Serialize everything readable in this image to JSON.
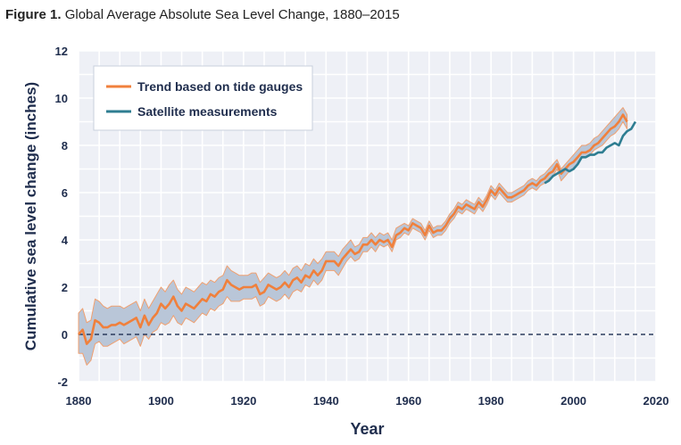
{
  "figure_label": "Figure 1.",
  "figure_title": "Global Average Absolute Sea Level Change, 1880–2015",
  "colors": {
    "tide": "#f0803c",
    "band_fill": "#b9c6d8",
    "band_edge": "#f0a070",
    "satellite": "#2e7d91",
    "plot_bg": "#eef0f6",
    "grid": "#ffffff",
    "zero_line": "#2a3a5c",
    "text": "#1f2d4d"
  },
  "chart_data": {
    "type": "line",
    "xlabel": "Year",
    "ylabel": "Cumulative sea level change (inches)",
    "xlim": [
      1880,
      2020
    ],
    "ylim": [
      -2,
      12
    ],
    "xticks": [
      "1880",
      "1900",
      "1920",
      "1940",
      "1960",
      "1980",
      "2000",
      "2020"
    ],
    "yticks": [
      "-2",
      "0",
      "2",
      "4",
      "6",
      "8",
      "10",
      "12"
    ],
    "grid": true,
    "legend_position": "top-left",
    "reference_line": {
      "y": 0,
      "style": "dashed"
    },
    "series": [
      {
        "name": "Trend based on tide gauges",
        "x": [
          1880,
          1881,
          1882,
          1883,
          1884,
          1885,
          1886,
          1887,
          1888,
          1889,
          1890,
          1891,
          1892,
          1893,
          1894,
          1895,
          1896,
          1897,
          1898,
          1899,
          1900,
          1901,
          1902,
          1903,
          1904,
          1905,
          1906,
          1907,
          1908,
          1909,
          1910,
          1911,
          1912,
          1913,
          1914,
          1915,
          1916,
          1917,
          1918,
          1919,
          1920,
          1921,
          1922,
          1923,
          1924,
          1925,
          1926,
          1927,
          1928,
          1929,
          1930,
          1931,
          1932,
          1933,
          1934,
          1935,
          1936,
          1937,
          1938,
          1939,
          1940,
          1941,
          1942,
          1943,
          1944,
          1945,
          1946,
          1947,
          1948,
          1949,
          1950,
          1951,
          1952,
          1953,
          1954,
          1955,
          1956,
          1957,
          1958,
          1959,
          1960,
          1961,
          1962,
          1963,
          1964,
          1965,
          1966,
          1967,
          1968,
          1969,
          1970,
          1971,
          1972,
          1973,
          1974,
          1975,
          1976,
          1977,
          1978,
          1979,
          1980,
          1981,
          1982,
          1983,
          1984,
          1985,
          1986,
          1987,
          1988,
          1989,
          1990,
          1991,
          1992,
          1993,
          1994,
          1995,
          1996,
          1997,
          1998,
          1999,
          2000,
          2001,
          2002,
          2003,
          2004,
          2005,
          2006,
          2007,
          2008,
          2009,
          2010,
          2011,
          2012,
          2013
        ],
        "y": [
          0.0,
          0.2,
          -0.4,
          -0.2,
          0.6,
          0.5,
          0.3,
          0.3,
          0.4,
          0.4,
          0.5,
          0.4,
          0.5,
          0.6,
          0.7,
          0.3,
          0.8,
          0.4,
          0.7,
          0.9,
          1.3,
          1.1,
          1.3,
          1.6,
          1.2,
          1.0,
          1.3,
          1.2,
          1.1,
          1.3,
          1.5,
          1.4,
          1.7,
          1.6,
          1.8,
          1.9,
          2.3,
          2.1,
          2.0,
          1.9,
          2.0,
          2.0,
          2.0,
          2.1,
          1.7,
          1.8,
          2.1,
          2.0,
          1.9,
          2.0,
          2.2,
          2.0,
          2.3,
          2.4,
          2.2,
          2.5,
          2.4,
          2.7,
          2.5,
          2.7,
          3.1,
          3.1,
          3.1,
          2.9,
          3.2,
          3.4,
          3.6,
          3.4,
          3.5,
          3.8,
          3.8,
          4.0,
          3.8,
          4.0,
          3.9,
          4.0,
          3.7,
          4.2,
          4.3,
          4.5,
          4.4,
          4.7,
          4.6,
          4.5,
          4.2,
          4.6,
          4.3,
          4.4,
          4.4,
          4.6,
          4.9,
          5.1,
          5.4,
          5.3,
          5.5,
          5.4,
          5.3,
          5.6,
          5.4,
          5.7,
          6.1,
          5.9,
          6.2,
          6.0,
          5.8,
          5.8,
          5.9,
          6.0,
          6.1,
          6.3,
          6.4,
          6.3,
          6.5,
          6.6,
          6.8,
          6.9,
          7.2,
          6.8,
          7.0,
          7.2,
          7.3,
          7.5,
          7.7,
          7.7,
          7.8,
          8.0,
          8.1,
          8.3,
          8.5,
          8.7,
          8.8,
          9.0,
          9.3,
          9.0
        ],
        "lower": [
          -0.8,
          -0.8,
          -1.3,
          -1.1,
          -0.4,
          -0.3,
          -0.5,
          -0.5,
          -0.4,
          -0.3,
          -0.2,
          -0.4,
          -0.3,
          -0.2,
          -0.1,
          -0.5,
          0.0,
          -0.2,
          0.1,
          0.2,
          0.5,
          0.4,
          0.5,
          0.8,
          0.5,
          0.4,
          0.7,
          0.6,
          0.5,
          0.7,
          0.9,
          0.8,
          1.1,
          1.0,
          1.2,
          1.3,
          1.6,
          1.4,
          1.4,
          1.4,
          1.5,
          1.5,
          1.5,
          1.6,
          1.2,
          1.3,
          1.6,
          1.5,
          1.4,
          1.5,
          1.7,
          1.5,
          1.8,
          1.9,
          1.8,
          2.1,
          2.0,
          2.3,
          2.1,
          2.3,
          2.7,
          2.7,
          2.7,
          2.5,
          2.8,
          3.1,
          3.3,
          3.1,
          3.2,
          3.5,
          3.5,
          3.7,
          3.5,
          3.8,
          3.7,
          3.8,
          3.5,
          4.0,
          4.1,
          4.3,
          4.2,
          4.5,
          4.4,
          4.3,
          4.0,
          4.4,
          4.1,
          4.2,
          4.2,
          4.4,
          4.7,
          4.9,
          5.2,
          5.1,
          5.3,
          5.2,
          5.1,
          5.4,
          5.2,
          5.5,
          5.9,
          5.7,
          6.0,
          5.8,
          5.6,
          5.6,
          5.7,
          5.8,
          5.9,
          6.1,
          6.2,
          6.1,
          6.3,
          6.4,
          6.6,
          6.7,
          7.0,
          6.5,
          6.7,
          6.9,
          7.0,
          7.2,
          7.5,
          7.5,
          7.6,
          7.8,
          7.9,
          8.0,
          8.2,
          8.4,
          8.5,
          8.7,
          9.0,
          8.7
        ],
        "upper": [
          0.9,
          1.1,
          0.5,
          0.6,
          1.5,
          1.4,
          1.2,
          1.1,
          1.2,
          1.2,
          1.2,
          1.1,
          1.2,
          1.3,
          1.4,
          1.0,
          1.5,
          1.1,
          1.4,
          1.7,
          2.0,
          1.8,
          2.1,
          2.3,
          1.9,
          1.7,
          2.0,
          1.9,
          1.8,
          2.0,
          2.2,
          2.1,
          2.3,
          2.2,
          2.4,
          2.5,
          2.9,
          2.7,
          2.6,
          2.5,
          2.5,
          2.5,
          2.6,
          2.6,
          2.2,
          2.4,
          2.6,
          2.5,
          2.4,
          2.5,
          2.7,
          2.5,
          2.8,
          2.9,
          2.7,
          3.0,
          2.9,
          3.2,
          3.0,
          3.2,
          3.5,
          3.5,
          3.5,
          3.3,
          3.6,
          3.8,
          4.0,
          3.7,
          3.8,
          4.1,
          4.1,
          4.3,
          4.1,
          4.3,
          4.2,
          4.3,
          4.0,
          4.5,
          4.6,
          4.7,
          4.6,
          4.9,
          4.8,
          4.7,
          4.4,
          4.8,
          4.5,
          4.6,
          4.6,
          4.8,
          5.1,
          5.3,
          5.6,
          5.5,
          5.7,
          5.6,
          5.5,
          5.8,
          5.6,
          5.9,
          6.3,
          6.1,
          6.4,
          6.2,
          6.0,
          6.0,
          6.1,
          6.2,
          6.3,
          6.5,
          6.6,
          6.5,
          6.7,
          6.8,
          7.0,
          7.2,
          7.4,
          7.0,
          7.2,
          7.4,
          7.6,
          7.8,
          8.0,
          8.0,
          8.1,
          8.3,
          8.4,
          8.6,
          8.8,
          9.0,
          9.2,
          9.4,
          9.6,
          9.3
        ]
      },
      {
        "name": "Satellite measurements",
        "x": [
          1993,
          1994,
          1995,
          1996,
          1997,
          1998,
          1999,
          2000,
          2001,
          2002,
          2003,
          2004,
          2005,
          2006,
          2007,
          2008,
          2009,
          2010,
          2011,
          2012,
          2013,
          2014,
          2015
        ],
        "y": [
          6.4,
          6.5,
          6.7,
          6.8,
          6.9,
          7.0,
          6.9,
          7.0,
          7.2,
          7.5,
          7.5,
          7.6,
          7.6,
          7.7,
          7.7,
          7.9,
          8.0,
          8.1,
          8.0,
          8.4,
          8.6,
          8.7,
          9.0
        ]
      }
    ]
  }
}
